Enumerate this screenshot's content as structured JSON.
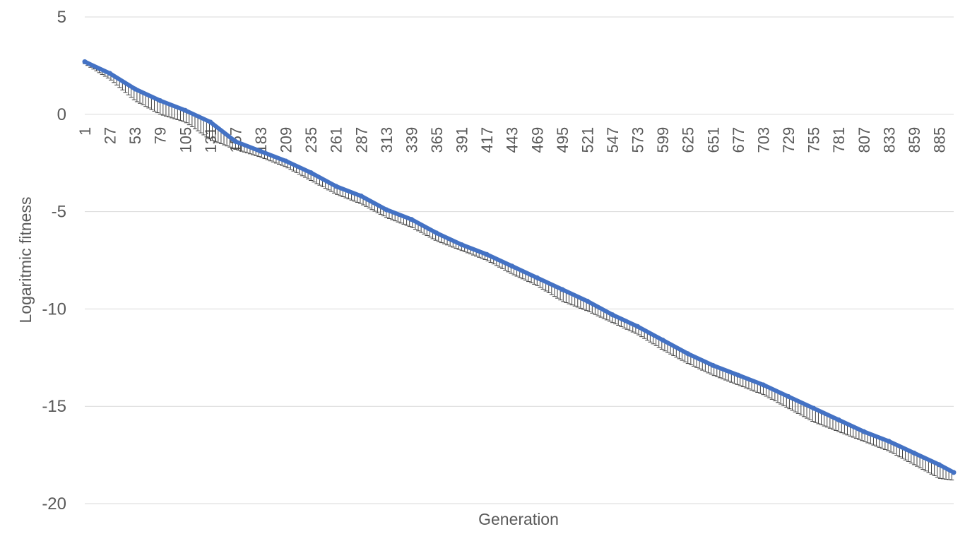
{
  "chart_data": {
    "type": "line",
    "title": "",
    "xlabel": "Generation",
    "ylabel": "Logaritmic fitness",
    "ylim": [
      -20,
      5
    ],
    "yticks": [
      5,
      0,
      -5,
      -10,
      -15,
      -20
    ],
    "x_tick_labels": [
      1,
      27,
      53,
      79,
      105,
      131,
      157,
      183,
      209,
      235,
      261,
      287,
      313,
      339,
      365,
      391,
      417,
      443,
      469,
      495,
      521,
      547,
      573,
      599,
      625,
      651,
      677,
      703,
      729,
      755,
      781,
      807,
      833,
      859,
      885
    ],
    "x_range": [
      1,
      900
    ],
    "grid": "horizontal",
    "legend": "none",
    "error_bars": "lower",
    "series": [
      {
        "color": "#4472C4",
        "x": [
          1,
          27,
          53,
          79,
          105,
          131,
          157,
          183,
          209,
          235,
          261,
          287,
          313,
          339,
          365,
          391,
          417,
          443,
          469,
          495,
          521,
          547,
          573,
          599,
          625,
          651,
          677,
          703,
          729,
          755,
          781,
          807,
          833,
          859,
          885,
          900
        ],
        "y": [
          2.7,
          2.1,
          1.3,
          0.7,
          0.2,
          -0.4,
          -1.4,
          -1.9,
          -2.4,
          -3.0,
          -3.7,
          -4.2,
          -4.9,
          -5.4,
          -6.1,
          -6.7,
          -7.2,
          -7.8,
          -8.4,
          -9.0,
          -9.6,
          -10.3,
          -10.9,
          -11.6,
          -12.3,
          -12.9,
          -13.4,
          -13.9,
          -14.5,
          -15.1,
          -15.7,
          -16.3,
          -16.8,
          -17.4,
          -18.0,
          -18.4
        ],
        "error_minus": [
          0.1,
          0.3,
          0.6,
          0.7,
          0.6,
          0.9,
          0.4,
          0.3,
          0.3,
          0.4,
          0.4,
          0.4,
          0.4,
          0.4,
          0.4,
          0.3,
          0.3,
          0.4,
          0.4,
          0.6,
          0.5,
          0.4,
          0.4,
          0.5,
          0.5,
          0.5,
          0.5,
          0.5,
          0.6,
          0.7,
          0.6,
          0.5,
          0.5,
          0.6,
          0.7,
          0.4
        ]
      }
    ]
  },
  "colors": {
    "line": "#4472C4",
    "error_bar": "#404040",
    "grid": "#D9D9D9",
    "text": "#595959"
  }
}
